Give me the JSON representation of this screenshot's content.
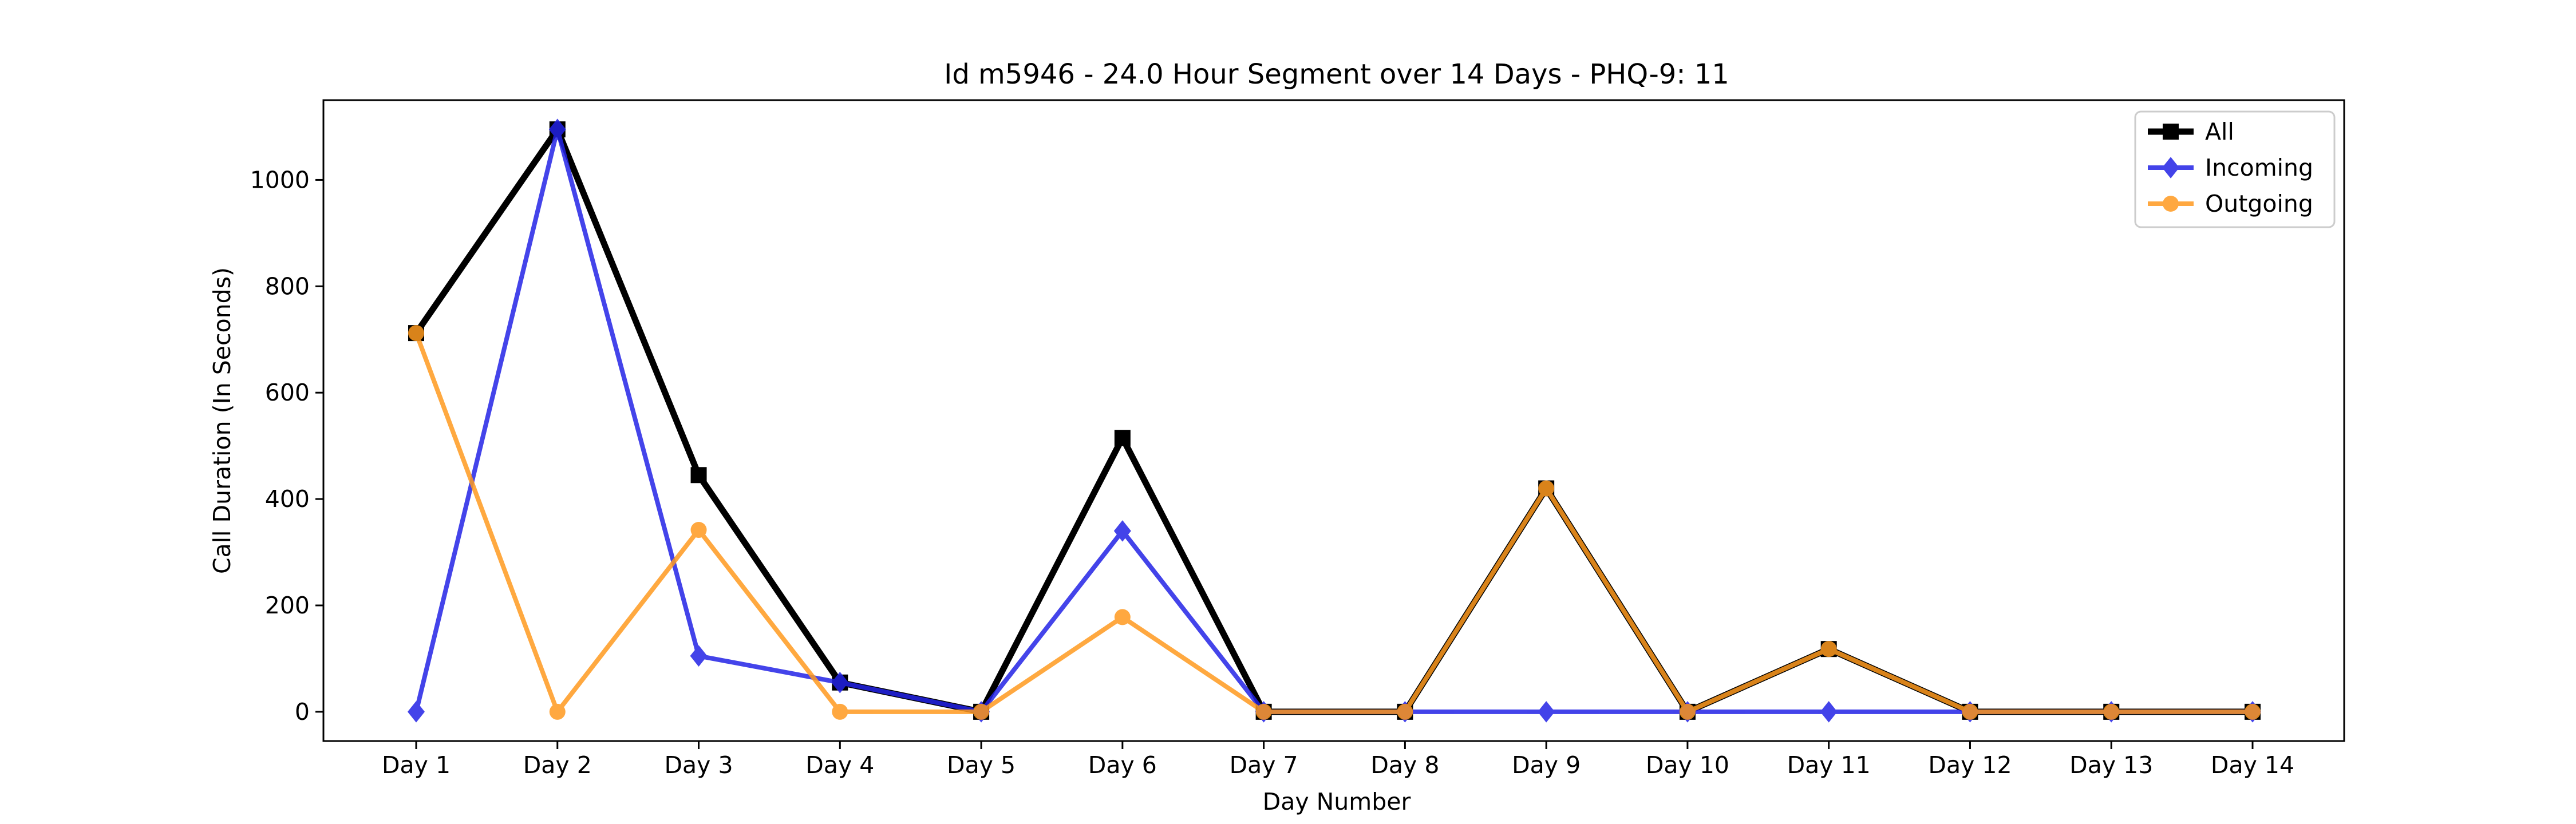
{
  "chart_data": {
    "type": "line",
    "title": "Id m5946 - 24.0 Hour Segment over 14 Days - PHQ-9: 11",
    "xlabel": "Day Number",
    "ylabel": "Call Duration (In Seconds)",
    "categories": [
      "Day 1",
      "Day 2",
      "Day 3",
      "Day 4",
      "Day 5",
      "Day 6",
      "Day 7",
      "Day 8",
      "Day 9",
      "Day 10",
      "Day 11",
      "Day 12",
      "Day 13",
      "Day 14"
    ],
    "ylim": [
      -55,
      1150
    ],
    "yticks": [
      0,
      200,
      400,
      600,
      800,
      1000
    ],
    "grid": false,
    "legend_position": "top-right",
    "series": [
      {
        "name": "All",
        "color": "#000000",
        "marker": "square",
        "values": [
          712,
          1095,
          445,
          55,
          0,
          515,
          0,
          0,
          420,
          0,
          118,
          0,
          0,
          0
        ]
      },
      {
        "name": "Incoming",
        "color": "#2323e6",
        "marker": "diamond",
        "values": [
          0,
          1095,
          105,
          55,
          0,
          340,
          0,
          0,
          0,
          0,
          0,
          0,
          0,
          0
        ]
      },
      {
        "name": "Outgoing",
        "color": "#ff9a1f",
        "marker": "circle",
        "values": [
          712,
          0,
          342,
          0,
          0,
          178,
          0,
          0,
          420,
          0,
          118,
          0,
          0,
          0
        ]
      }
    ]
  }
}
